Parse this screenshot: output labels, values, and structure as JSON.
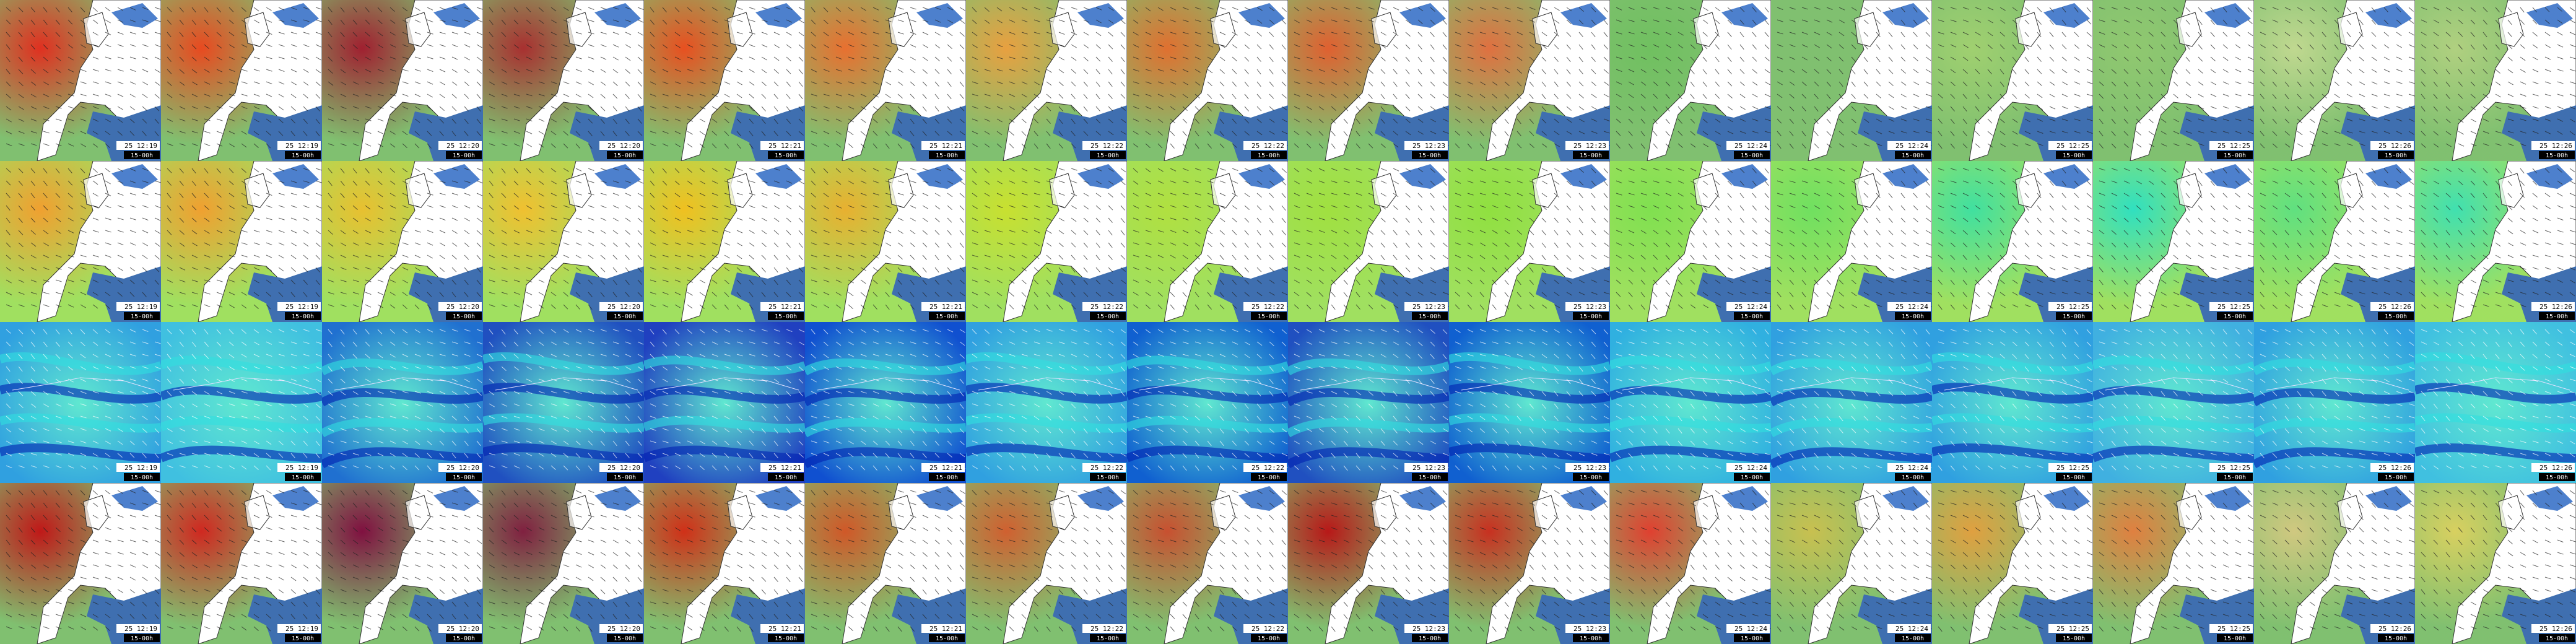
{
  "run_label": "15-00h",
  "columns": [
    {
      "time": "25 12:19"
    },
    {
      "time": "25 12:19"
    },
    {
      "time": "25 12:20"
    },
    {
      "time": "25 12:20"
    },
    {
      "time": "25 12:21"
    },
    {
      "time": "25 12:21"
    },
    {
      "time": "25 12:22"
    },
    {
      "time": "25 12:22"
    },
    {
      "time": "25 12:23"
    },
    {
      "time": "25 12:23"
    },
    {
      "time": "25 12:24"
    },
    {
      "time": "25 12:24"
    },
    {
      "time": "25 12:25"
    },
    {
      "time": "25 12:25"
    },
    {
      "time": "25 12:26"
    },
    {
      "time": "25 12:26"
    }
  ]
}
